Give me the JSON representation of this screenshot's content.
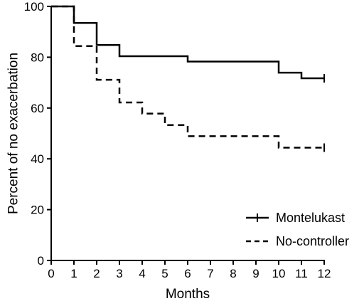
{
  "chart_data": {
    "type": "line",
    "subtype": "kaplan-meier step curve",
    "xlabel": "Months",
    "ylabel": "Percent of no exacerbation",
    "xlim": [
      0,
      12
    ],
    "ylim": [
      0,
      100
    ],
    "x_ticks": [
      "0",
      "1",
      "2",
      "3",
      "4",
      "5",
      "6",
      "7",
      "8",
      "9",
      "10",
      "11",
      "12"
    ],
    "y_ticks": [
      "0",
      "20",
      "40",
      "60",
      "80",
      "100"
    ],
    "grid": false,
    "legend_position": "bottom-right",
    "series": [
      {
        "name": "Montelukast",
        "line_style": "solid",
        "color": "#000000",
        "x": [
          0,
          1,
          2,
          3,
          6,
          10,
          11,
          12
        ],
        "y": [
          100,
          93.5,
          84.8,
          80.4,
          78.3,
          73.9,
          71.7,
          71.7
        ],
        "censor_marks": [
          [
            12,
            71.7
          ]
        ]
      },
      {
        "name": "No-controller",
        "line_style": "dashed",
        "color": "#000000",
        "x": [
          0,
          1,
          2,
          3,
          4,
          5,
          6,
          10,
          12
        ],
        "y": [
          100,
          84.4,
          71.1,
          62.2,
          57.8,
          53.3,
          48.9,
          44.4,
          44.4
        ],
        "censor_marks": [
          [
            12,
            44.4
          ]
        ]
      }
    ]
  }
}
